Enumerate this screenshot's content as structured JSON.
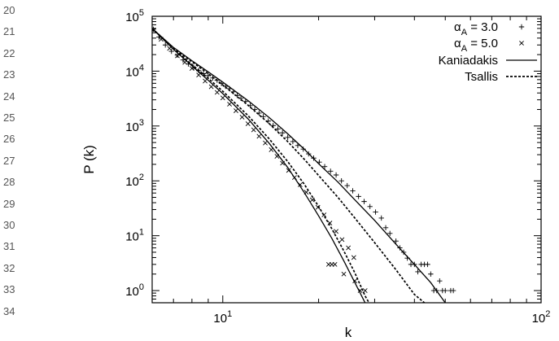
{
  "line_numbers": [
    "20",
    "21",
    "22",
    "23",
    "24",
    "25",
    "26",
    "27",
    "28",
    "29",
    "30",
    "31",
    "32",
    "33",
    "34"
  ],
  "chart_data": {
    "type": "scatter",
    "title": "",
    "xlabel": "k",
    "ylabel": "P (k)",
    "xscale": "log",
    "yscale": "log",
    "xlim": [
      6,
      100
    ],
    "ylim": [
      0.6,
      100000
    ],
    "grid": false,
    "legend_position": "top-right",
    "x_ticks": [
      {
        "value": 10,
        "base": "10",
        "exp": "1"
      },
      {
        "value": 100,
        "base": "10",
        "exp": "2"
      }
    ],
    "y_ticks": [
      {
        "value": 1,
        "base": "10",
        "exp": "0"
      },
      {
        "value": 10,
        "base": "10",
        "exp": "1"
      },
      {
        "value": 100,
        "base": "10",
        "exp": "2"
      },
      {
        "value": 1000,
        "base": "10",
        "exp": "3"
      },
      {
        "value": 10000,
        "base": "10",
        "exp": "4"
      },
      {
        "value": 100000,
        "base": "10",
        "exp": "5"
      }
    ],
    "legend": [
      {
        "label_main": "α",
        "label_sub": "A",
        "label_rest": " = 3.0",
        "marker": "plus"
      },
      {
        "label_main": "α",
        "label_sub": "A",
        "label_rest": " = 5.0",
        "marker": "cross"
      },
      {
        "label_main": "Kaniadakis",
        "label_sub": "",
        "label_rest": "",
        "style": "solid"
      },
      {
        "label_main": "Tsallis",
        "label_sub": "",
        "label_rest": "",
        "style": "dashed"
      }
    ],
    "series": [
      {
        "name": "αA = 3.0",
        "kind": "points",
        "marker": "plus",
        "points": [
          [
            6.05,
            58000
          ],
          [
            6.3,
            42000
          ],
          [
            6.6,
            30000
          ],
          [
            6.9,
            23000
          ],
          [
            7.2,
            19500
          ],
          [
            7.5,
            16000
          ],
          [
            7.8,
            13500
          ],
          [
            8.1,
            11500
          ],
          [
            8.4,
            10200
          ],
          [
            8.7,
            9000
          ],
          [
            9.0,
            8300
          ],
          [
            9.3,
            7500
          ],
          [
            9.6,
            6800
          ],
          [
            9.9,
            6000
          ],
          [
            10.2,
            5300
          ],
          [
            10.5,
            4800
          ],
          [
            10.8,
            4200
          ],
          [
            11.1,
            3600
          ],
          [
            11.4,
            3200
          ],
          [
            11.8,
            2800
          ],
          [
            12.2,
            2350
          ],
          [
            12.6,
            2000
          ],
          [
            13.0,
            1720
          ],
          [
            13.4,
            1480
          ],
          [
            13.9,
            1230
          ],
          [
            14.4,
            1020
          ],
          [
            14.9,
            880
          ],
          [
            15.4,
            750
          ],
          [
            16.0,
            620
          ],
          [
            16.6,
            520
          ],
          [
            17.2,
            440
          ],
          [
            17.9,
            380
          ],
          [
            18.6,
            310
          ],
          [
            19.3,
            260
          ],
          [
            20.1,
            220
          ],
          [
            20.9,
            182
          ],
          [
            21.8,
            150
          ],
          [
            22.7,
            128
          ],
          [
            23.6,
            100
          ],
          [
            24.6,
            82
          ],
          [
            25.6,
            66
          ],
          [
            26.7,
            52
          ],
          [
            27.8,
            42
          ],
          [
            29.0,
            34
          ],
          [
            30.2,
            27
          ],
          [
            31.5,
            21
          ],
          [
            32.5,
            14
          ],
          [
            33.5,
            11
          ],
          [
            35,
            8
          ],
          [
            36,
            6
          ],
          [
            37,
            5
          ],
          [
            38,
            3.9
          ],
          [
            39,
            3
          ],
          [
            40,
            3
          ],
          [
            41,
            2.2
          ],
          [
            42,
            3
          ],
          [
            43,
            3
          ],
          [
            44,
            3
          ],
          [
            45,
            2
          ],
          [
            46,
            1
          ],
          [
            47,
            1
          ],
          [
            48,
            1.5
          ],
          [
            49,
            1
          ],
          [
            50,
            1
          ],
          [
            52,
            1
          ],
          [
            53,
            1
          ]
        ]
      },
      {
        "name": "αA = 5.0",
        "kind": "points",
        "marker": "cross",
        "points": [
          [
            6.05,
            56000
          ],
          [
            6.4,
            38000
          ],
          [
            6.8,
            26000
          ],
          [
            7.2,
            19000
          ],
          [
            7.6,
            14500
          ],
          [
            8.0,
            11200
          ],
          [
            8.4,
            8500
          ],
          [
            8.8,
            6600
          ],
          [
            9.2,
            5200
          ],
          [
            9.6,
            4100
          ],
          [
            10.0,
            3250
          ],
          [
            10.5,
            2500
          ],
          [
            11.0,
            1900
          ],
          [
            11.5,
            1450
          ],
          [
            12.0,
            1100
          ],
          [
            12.5,
            850
          ],
          [
            13.0,
            650
          ],
          [
            13.6,
            490
          ],
          [
            14.2,
            370
          ],
          [
            14.8,
            280
          ],
          [
            15.4,
            210
          ],
          [
            16.1,
            155
          ],
          [
            16.8,
            115
          ],
          [
            17.5,
            85
          ],
          [
            18.3,
            62
          ],
          [
            19.1,
            45
          ],
          [
            19.9,
            33
          ],
          [
            20.8,
            24
          ],
          [
            21.7,
            17
          ],
          [
            22.7,
            12
          ],
          [
            23.7,
            8.5
          ],
          [
            24.8,
            6
          ],
          [
            25.8,
            4
          ],
          [
            21.5,
            3
          ],
          [
            22,
            3
          ],
          [
            22.5,
            3
          ],
          [
            24,
            2
          ],
          [
            26,
            1.5
          ],
          [
            27,
            1
          ],
          [
            28,
            1
          ]
        ]
      },
      {
        "name": "Kaniadakis",
        "kind": "line",
        "style": "solid",
        "points": [
          [
            6,
            60000
          ],
          [
            7,
            27000
          ],
          [
            8,
            15500
          ],
          [
            9,
            9700
          ],
          [
            10,
            6300
          ],
          [
            12,
            2900
          ],
          [
            14,
            1420
          ],
          [
            16,
            720
          ],
          [
            18,
            380
          ],
          [
            20,
            205
          ],
          [
            23,
            95
          ],
          [
            26,
            45
          ],
          [
            30,
            19
          ],
          [
            35,
            7
          ],
          [
            40,
            3
          ],
          [
            45,
            1.4
          ],
          [
            50,
            0.6
          ]
        ]
      },
      {
        "name": "Kaniadakis",
        "kind": "line",
        "style": "solid",
        "points": [
          [
            6,
            60000
          ],
          [
            7,
            25000
          ],
          [
            8,
            12500
          ],
          [
            9,
            6800
          ],
          [
            10,
            3900
          ],
          [
            12,
            1350
          ],
          [
            14,
            480
          ],
          [
            16,
            175
          ],
          [
            18,
            62
          ],
          [
            20,
            23
          ],
          [
            22,
            9
          ],
          [
            24,
            3.5
          ],
          [
            26,
            1.4
          ],
          [
            28,
            0.6
          ]
        ]
      },
      {
        "name": "Tsallis",
        "kind": "line",
        "style": "dashed",
        "points": [
          [
            6,
            60000
          ],
          [
            7,
            26500
          ],
          [
            8,
            14800
          ],
          [
            9,
            9000
          ],
          [
            10,
            5600
          ],
          [
            12,
            2400
          ],
          [
            14,
            1100
          ],
          [
            16,
            520
          ],
          [
            18,
            250
          ],
          [
            20,
            125
          ],
          [
            23,
            50
          ],
          [
            26,
            21
          ],
          [
            30,
            7.5
          ],
          [
            35,
            2.4
          ],
          [
            40,
            0.85
          ],
          [
            43,
            0.6
          ]
        ]
      },
      {
        "name": "Tsallis",
        "kind": "line",
        "style": "dashed",
        "points": [
          [
            6,
            60000
          ],
          [
            7,
            25500
          ],
          [
            8,
            13200
          ],
          [
            9,
            7400
          ],
          [
            10,
            4300
          ],
          [
            12,
            1550
          ],
          [
            14,
            580
          ],
          [
            16,
            225
          ],
          [
            18,
            88
          ],
          [
            20,
            34
          ],
          [
            22,
            13.5
          ],
          [
            24,
            5.3
          ],
          [
            26,
            2.1
          ],
          [
            28,
            0.8
          ],
          [
            28.8,
            0.6
          ]
        ]
      }
    ]
  }
}
